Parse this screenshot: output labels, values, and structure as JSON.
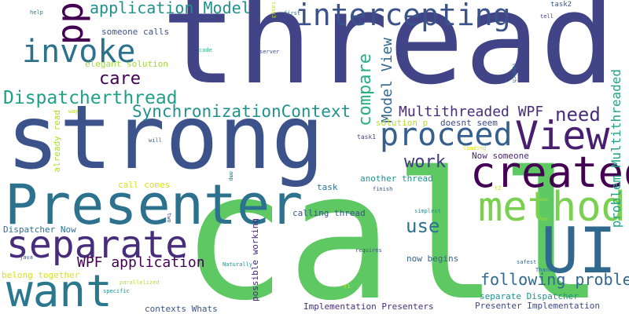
{
  "cloud": {
    "words": [
      {
        "text": "thread",
        "color": "#414487"
      },
      {
        "text": "strong",
        "color": "#3b528b"
      },
      {
        "text": "call",
        "color": "#5ec962"
      },
      {
        "text": "Presenter",
        "color": "#2c728e"
      },
      {
        "text": "UI",
        "color": "#31688e"
      },
      {
        "text": "created",
        "color": "#440154"
      },
      {
        "text": "method",
        "color": "#7ad151"
      },
      {
        "text": "separate",
        "color": "#472d7b"
      },
      {
        "text": "want",
        "color": "#2a788e"
      },
      {
        "text": "intercepting",
        "color": "#3b528b"
      },
      {
        "text": "invoke",
        "color": "#2c728e"
      },
      {
        "text": "View",
        "color": "#481f70"
      },
      {
        "text": "proceed",
        "color": "#355f8d"
      },
      {
        "text": "pp",
        "color": "#440154"
      },
      {
        "text": "application Model",
        "color": "#21918c"
      },
      {
        "text": "care",
        "color": "#440154"
      },
      {
        "text": "Dispatcherthread",
        "color": "#1fa187"
      },
      {
        "text": "SynchronizationContext",
        "color": "#21918c"
      },
      {
        "text": "Multithreaded WPF",
        "color": "#472d7b"
      },
      {
        "text": "compare",
        "color": "#28ae80"
      },
      {
        "text": "Model View",
        "color": "#31688e"
      },
      {
        "text": "need",
        "color": "#472d7b"
      },
      {
        "text": "work",
        "color": "#443983"
      },
      {
        "text": "use",
        "color": "#2c728e"
      },
      {
        "text": "WPF application",
        "color": "#440154"
      },
      {
        "text": "following problem",
        "color": "#31688e"
      },
      {
        "text": "problem Multithreaded",
        "color": "#20a486"
      },
      {
        "text": "someone calls",
        "color": "#3b528b"
      },
      {
        "text": "elegant solution",
        "color": "#a0da39"
      },
      {
        "text": "solution p",
        "color": "#b5de2b"
      },
      {
        "text": "doesnt seem",
        "color": "#3e4989"
      },
      {
        "text": "task1",
        "color": "#414487"
      },
      {
        "text": "Now someone",
        "color": "#481f70"
      },
      {
        "text": "another thread",
        "color": "#21918c"
      },
      {
        "text": "task",
        "color": "#2c728e"
      },
      {
        "text": "call comes",
        "color": "#d8e219"
      },
      {
        "text": "calling thread",
        "color": "#3b528b"
      },
      {
        "text": "Dispatcher Now",
        "color": "#2c728e"
      },
      {
        "text": "belong together",
        "color": "#d8e219"
      },
      {
        "text": "now begins",
        "color": "#33638d"
      },
      {
        "text": "separate Dispatcher",
        "color": "#21918c"
      },
      {
        "text": "Presenter Implementation",
        "color": "#3e4989"
      },
      {
        "text": "Implementation Presenters",
        "color": "#472d7b"
      },
      {
        "text": "contexts Whats",
        "color": "#3b528b"
      },
      {
        "text": "possible working",
        "color": "#482878"
      },
      {
        "text": "already read",
        "color": "#addc30"
      },
      {
        "text": "help",
        "color": "#2a788e"
      },
      {
        "text": "task3",
        "color": "#bddf26"
      },
      {
        "text": "first",
        "color": "#2c728e"
      },
      {
        "text": "tell",
        "color": "#443983"
      },
      {
        "text": "task2",
        "color": "#3b528b"
      },
      {
        "text": "code",
        "color": "#28ae80"
      },
      {
        "text": "server",
        "color": "#3b528b"
      },
      {
        "text": "launch",
        "color": "#2c728e"
      },
      {
        "text": "way",
        "color": "#bddf26"
      },
      {
        "text": "will",
        "color": "#355f8d"
      },
      {
        "text": "amp",
        "color": "#2c728e"
      },
      {
        "text": "loading",
        "color": "#d8e219"
      },
      {
        "text": "finish",
        "color": "#3b528b"
      },
      {
        "text": "t2",
        "color": "#bddf26"
      },
      {
        "text": "two",
        "color": "#3e4989"
      },
      {
        "text": "simplest",
        "color": "#21918c"
      },
      {
        "text": "java",
        "color": "#3b528b"
      },
      {
        "text": "requires",
        "color": "#3b528b"
      },
      {
        "text": "safest",
        "color": "#31688e"
      },
      {
        "text": "Thank",
        "color": "#2c728e"
      },
      {
        "text": "Naturally",
        "color": "#21918c"
      },
      {
        "text": "parallelized",
        "color": "#b5de2b"
      },
      {
        "text": "specific",
        "color": "#21918c"
      },
      {
        "text": "t1",
        "color": "#d8e219"
      }
    ]
  }
}
